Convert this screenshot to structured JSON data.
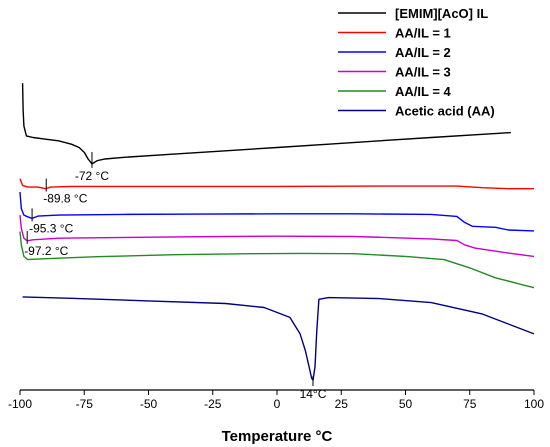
{
  "chart_data": {
    "type": "line",
    "title": "",
    "xlabel": "Temperature °C",
    "ylabel": "",
    "xlim": [
      -100,
      100
    ],
    "x_ticks": [
      "-100",
      "-75",
      "-50",
      "-25",
      "0",
      "25",
      "50",
      "75",
      "100"
    ],
    "grid": false,
    "legend_position": "top-right",
    "series": [
      {
        "name": "[EMIM][AcO] IL",
        "color": "#000000",
        "points": [
          [
            -99,
            0.93
          ],
          [
            -98.8,
            0.85
          ],
          [
            -98.5,
            0.8
          ],
          [
            -97.5,
            0.77
          ],
          [
            -95,
            0.765
          ],
          [
            -90,
            0.76
          ],
          [
            -85,
            0.755
          ],
          [
            -80,
            0.745
          ],
          [
            -77,
            0.735
          ],
          [
            -75,
            0.72
          ],
          [
            -73.5,
            0.7
          ],
          [
            -72,
            0.685
          ],
          [
            -70,
            0.695
          ],
          [
            -67,
            0.7
          ],
          [
            -60,
            0.705
          ],
          [
            -40,
            0.715
          ],
          [
            -20,
            0.725
          ],
          [
            0,
            0.735
          ],
          [
            20,
            0.745
          ],
          [
            40,
            0.755
          ],
          [
            60,
            0.765
          ],
          [
            80,
            0.775
          ],
          [
            91,
            0.78
          ]
        ]
      },
      {
        "name": "AA/IL = 1",
        "color": "#ff0000",
        "points": [
          [
            -100,
            0.64
          ],
          [
            -99,
            0.62
          ],
          [
            -97,
            0.615
          ],
          [
            -93,
            0.615
          ],
          [
            -90,
            0.61
          ],
          [
            -88,
            0.615
          ],
          [
            -80,
            0.617
          ],
          [
            -50,
            0.617
          ],
          [
            -20,
            0.617
          ],
          [
            0,
            0.617
          ],
          [
            40,
            0.618
          ],
          [
            70,
            0.618
          ],
          [
            80,
            0.613
          ],
          [
            90,
            0.61
          ],
          [
            100,
            0.61
          ]
        ]
      },
      {
        "name": "AA/IL = 2",
        "color": "#0000ff",
        "points": [
          [
            -100,
            0.6
          ],
          [
            -99.5,
            0.55
          ],
          [
            -98.5,
            0.53
          ],
          [
            -97,
            0.525
          ],
          [
            -95.3,
            0.52
          ],
          [
            -93,
            0.527
          ],
          [
            -85,
            0.53
          ],
          [
            -60,
            0.532
          ],
          [
            -30,
            0.533
          ],
          [
            0,
            0.534
          ],
          [
            30,
            0.534
          ],
          [
            60,
            0.532
          ],
          [
            70,
            0.526
          ],
          [
            73,
            0.508
          ],
          [
            76,
            0.496
          ],
          [
            85,
            0.493
          ],
          [
            90,
            0.485
          ],
          [
            100,
            0.482
          ]
        ]
      },
      {
        "name": "AA/IL = 3",
        "color": "#cc00cc",
        "points": [
          [
            -100,
            0.53
          ],
          [
            -99.5,
            0.49
          ],
          [
            -98.5,
            0.46
          ],
          [
            -97.2,
            0.452
          ],
          [
            -95,
            0.455
          ],
          [
            -85,
            0.46
          ],
          [
            -50,
            0.463
          ],
          [
            -20,
            0.465
          ],
          [
            0,
            0.466
          ],
          [
            30,
            0.465
          ],
          [
            60,
            0.458
          ],
          [
            70,
            0.453
          ],
          [
            73,
            0.44
          ],
          [
            77,
            0.43
          ],
          [
            90,
            0.415
          ],
          [
            100,
            0.405
          ]
        ]
      },
      {
        "name": "AA/IL = 4",
        "color": "#228b22",
        "points": [
          [
            -100,
            0.48
          ],
          [
            -99.5,
            0.44
          ],
          [
            -98.5,
            0.405
          ],
          [
            -97,
            0.395
          ],
          [
            -90,
            0.398
          ],
          [
            -70,
            0.404
          ],
          [
            -40,
            0.41
          ],
          [
            -10,
            0.413
          ],
          [
            10,
            0.414
          ],
          [
            30,
            0.413
          ],
          [
            50,
            0.405
          ],
          [
            65,
            0.395
          ],
          [
            75,
            0.37
          ],
          [
            85,
            0.34
          ],
          [
            95,
            0.32
          ],
          [
            100,
            0.31
          ]
        ]
      },
      {
        "name": "Acetic acid (AA)",
        "color": "#000080",
        "points": [
          [
            -99,
            0.282
          ],
          [
            -80,
            0.278
          ],
          [
            -50,
            0.27
          ],
          [
            -20,
            0.262
          ],
          [
            -5,
            0.25
          ],
          [
            5,
            0.22
          ],
          [
            9,
            0.17
          ],
          [
            11,
            0.12
          ],
          [
            12.5,
            0.07
          ],
          [
            13.5,
            0.035
          ],
          [
            14,
            0.03
          ],
          [
            14.8,
            0.07
          ],
          [
            15.5,
            0.18
          ],
          [
            16.3,
            0.275
          ],
          [
            20,
            0.28
          ],
          [
            40,
            0.277
          ],
          [
            60,
            0.265
          ],
          [
            80,
            0.23
          ],
          [
            90,
            0.2
          ],
          [
            100,
            0.17
          ]
        ]
      }
    ],
    "annotations": [
      {
        "text": "-72 °C",
        "x": -72,
        "series": 0
      },
      {
        "text": "-89.8 °C",
        "x": -89.8,
        "series": 1
      },
      {
        "text": "-95.3 °C",
        "x": -95.3,
        "series": 2
      },
      {
        "text": "-97.2 °C",
        "x": -97.2,
        "series": 3
      },
      {
        "text": "14°C",
        "x": 14,
        "series": 5
      }
    ]
  }
}
